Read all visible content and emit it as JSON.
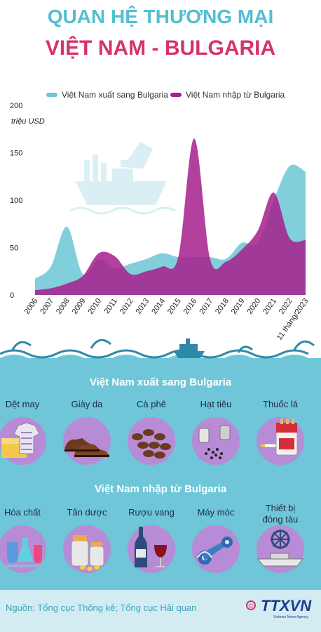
{
  "header": {
    "title_line1": "QUAN HỆ THƯƠNG MẠI",
    "title_line2": "VIỆT NAM - BULGARIA"
  },
  "colors": {
    "export": "#6cc7d6",
    "import": "#a61e8c",
    "title_pink": "#d6336c",
    "teal_bg": "#6ec6d8"
  },
  "chart_data": {
    "type": "area",
    "title": "",
    "xlabel": "",
    "ylabel": "triệu USD",
    "ylim": [
      0,
      200
    ],
    "yticks": [
      0,
      50,
      100,
      150,
      200
    ],
    "grid": false,
    "legend_position": "top",
    "x": [
      "2006",
      "2007",
      "2008",
      "2009",
      "2010",
      "2011",
      "2012",
      "2013",
      "2014",
      "2015",
      "2016",
      "2017",
      "2018",
      "2019",
      "2020",
      "2021",
      "2022",
      "11 tháng/2023"
    ],
    "series": [
      {
        "name": "Việt Nam xuất sang Bulgaria",
        "color": "#6cc7d6",
        "values": [
          17,
          30,
          72,
          22,
          38,
          28,
          33,
          38,
          44,
          40,
          40,
          40,
          38,
          55,
          55,
          100,
          136,
          130
        ]
      },
      {
        "name": "Việt Nam nhập từ Bulgaria",
        "color": "#a61e8c",
        "values": [
          5,
          7,
          12,
          20,
          44,
          41,
          22,
          25,
          30,
          40,
          165,
          38,
          35,
          48,
          68,
          108,
          60,
          58
        ]
      }
    ]
  },
  "exports": {
    "title": "Việt Nam xuất sang Bulgaria",
    "items": [
      {
        "label": "Dệt may",
        "icon": "textile-icon"
      },
      {
        "label": "Giày da",
        "icon": "shoes-icon"
      },
      {
        "label": "Cà phê",
        "icon": "coffee-icon"
      },
      {
        "label": "Hạt tiêu",
        "icon": "pepper-icon"
      },
      {
        "label": "Thuốc lá",
        "icon": "cigarette-icon"
      }
    ]
  },
  "imports": {
    "title": "Việt Nam nhập từ Bulgaria",
    "items": [
      {
        "label": "Hóa chất",
        "icon": "chemical-icon"
      },
      {
        "label": "Tân dược",
        "icon": "medicine-icon"
      },
      {
        "label": "Rượu vang",
        "icon": "wine-icon"
      },
      {
        "label": "Máy móc",
        "icon": "machine-icon"
      },
      {
        "label": "Thiết bị đóng tàu",
        "icon": "ship-equipment-icon"
      }
    ]
  },
  "footer": {
    "source": "Nguồn: Tổng cục Thống kê; Tổng cục Hải quan",
    "logo": "TTXVN",
    "logo_sub": "Vietnam News Agency",
    "copyright": "©"
  }
}
